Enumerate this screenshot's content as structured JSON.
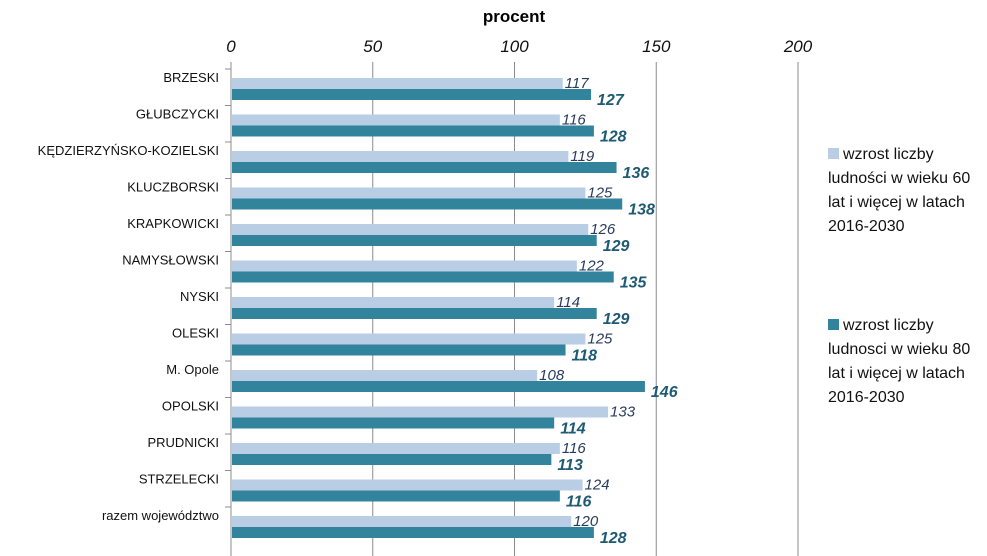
{
  "chart_data": {
    "type": "bar",
    "orientation": "horizontal",
    "title": "procent",
    "categories": [
      "BRZESKI",
      "GŁUBCZYCKI",
      "KĘDZIERZYŃSKO-KOZIELSKI",
      "KLUCZBORSKI",
      "KRAPKOWICKI",
      "NAMYSŁOWSKI",
      "NYSKI",
      "OLESKI",
      "M. Opole",
      "OPOLSKI",
      "PRUDNICKI",
      "STRZELECKI",
      "razem województwo"
    ],
    "series": [
      {
        "name": "wzrost liczby ludności w wieku 60 lat i więcej w latach 2016-2030",
        "values": [
          117,
          116,
          119,
          125,
          126,
          122,
          114,
          125,
          108,
          133,
          116,
          124,
          120
        ],
        "color": "#b9cde5"
      },
      {
        "name": "wzrost liczby ludnosci w wieku 80 lat i więcej w latach 2016-2030",
        "values": [
          127,
          128,
          136,
          138,
          129,
          135,
          129,
          118,
          146,
          114,
          113,
          116,
          128
        ],
        "color": "#31849b"
      }
    ],
    "xlim": [
      0,
      200
    ],
    "xticks": [
      0,
      50,
      100,
      150,
      200
    ],
    "grid": true,
    "legend_position": "right",
    "label_colors": [
      "#2a3c5e",
      "#1f5a73"
    ]
  }
}
